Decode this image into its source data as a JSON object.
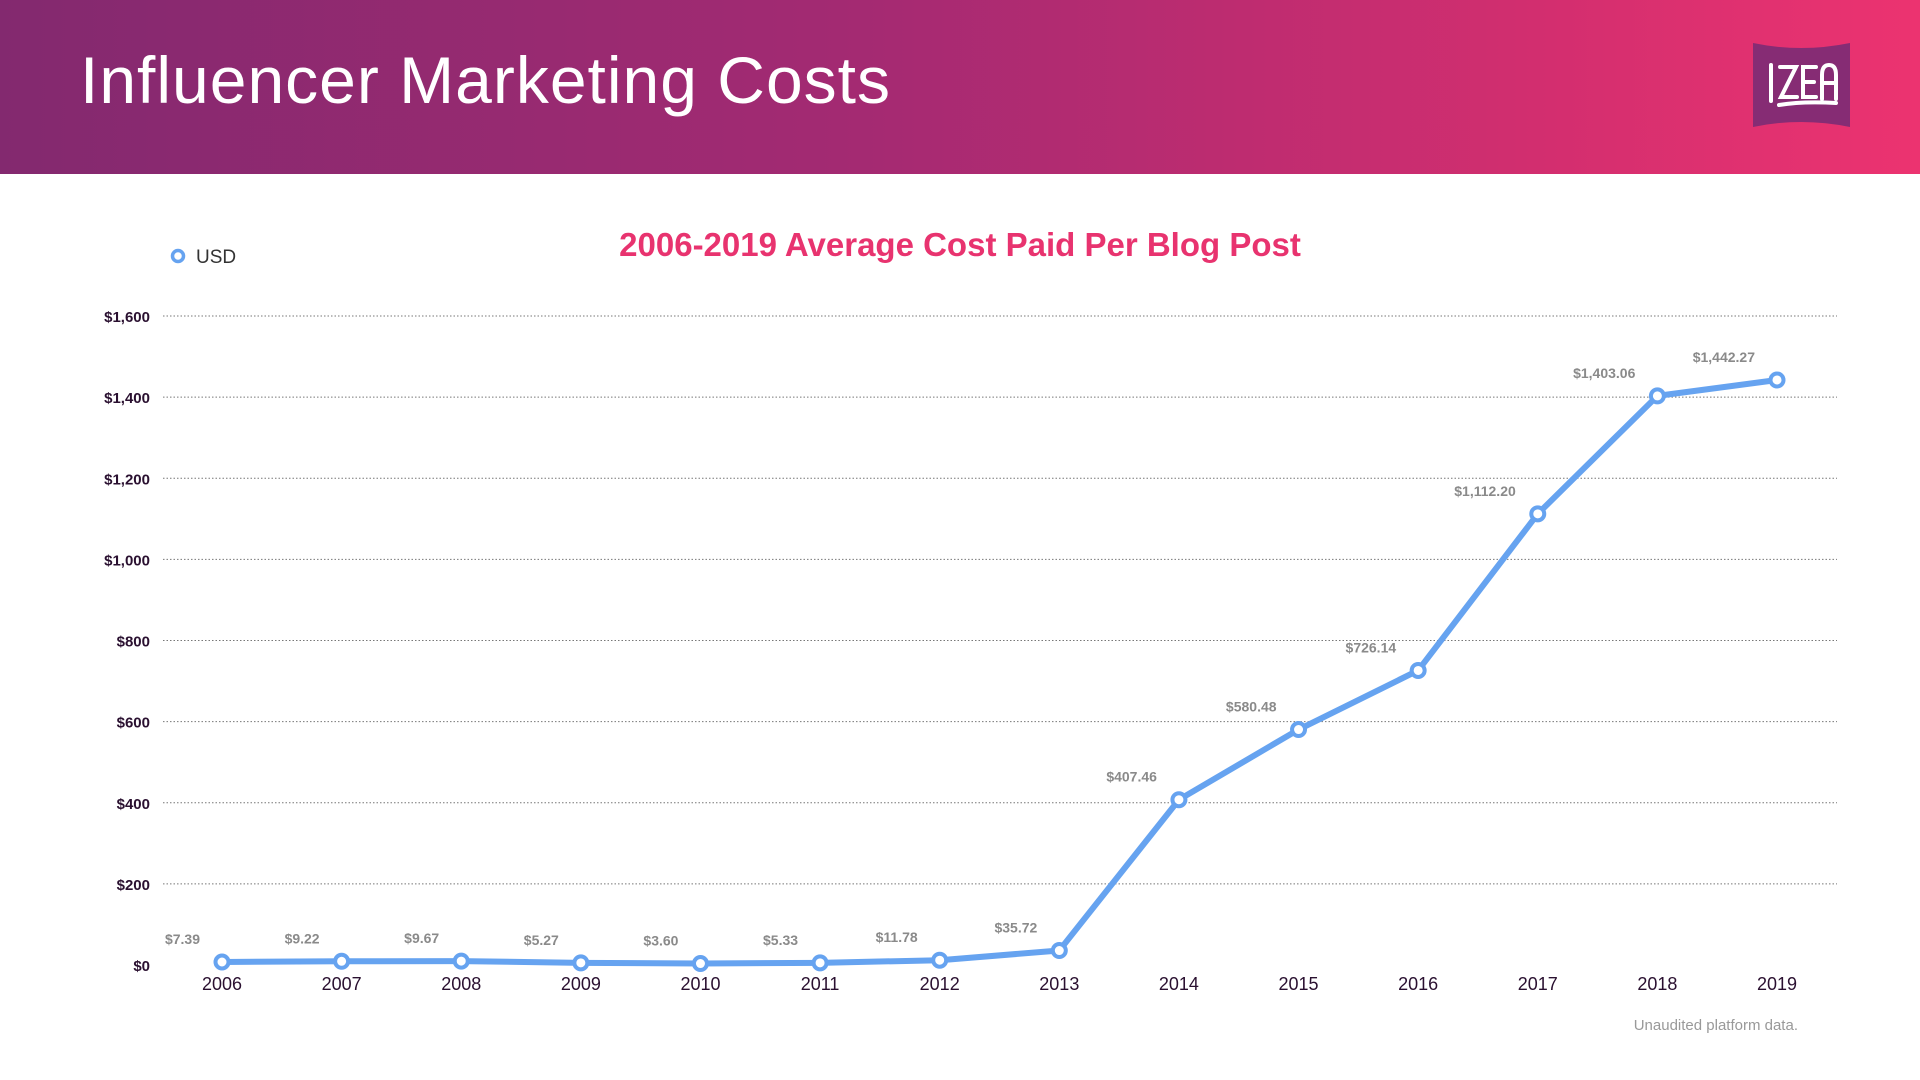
{
  "header": {
    "title": "Influencer Marketing Costs",
    "logo_text": "IZEA"
  },
  "colors": {
    "header_start": "#83296f",
    "header_end": "#ec3370",
    "line": "#66a3f0",
    "title": "#e8336f",
    "logo_bg": "#862c74"
  },
  "footer": {
    "note": "Unaudited platform data."
  },
  "chart_data": {
    "type": "line",
    "title": "2006-2019 Average Cost Paid Per Blog Post",
    "legend": {
      "position": "top-left",
      "entries": [
        "USD"
      ]
    },
    "x": [
      "2006",
      "2007",
      "2008",
      "2009",
      "2010",
      "2011",
      "2012",
      "2013",
      "2014",
      "2015",
      "2016",
      "2017",
      "2018",
      "2019"
    ],
    "series": [
      {
        "name": "USD",
        "values": [
          7.39,
          9.22,
          9.67,
          5.27,
          3.6,
          5.33,
          11.78,
          35.72,
          407.46,
          580.48,
          726.14,
          1112.2,
          1403.06,
          1442.27
        ]
      }
    ],
    "data_labels": [
      "$7.39",
      "$9.22",
      "$9.67",
      "$5.27",
      "$3.60",
      "$5.33",
      "$11.78",
      "$35.72",
      "$407.46",
      "$580.48",
      "$726.14",
      "$1,112.20",
      "$1,403.06",
      "$1,442.27"
    ],
    "yticks": [
      0,
      200,
      400,
      600,
      800,
      1000,
      1200,
      1400,
      1600
    ],
    "ytick_labels": [
      "$0",
      "$200",
      "$400",
      "$600",
      "$800",
      "$1,000",
      "$1,200",
      "$1,400",
      "$1,600"
    ],
    "ylim": [
      0,
      1600
    ],
    "grid": "horizontal dotted"
  }
}
